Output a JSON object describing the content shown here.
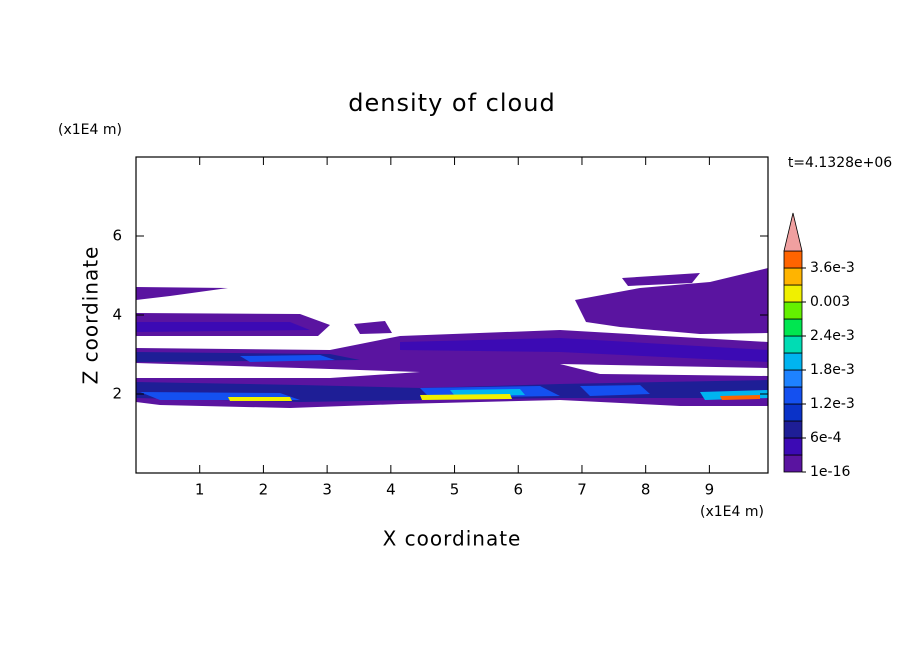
{
  "chart_data": {
    "type": "contour",
    "title": "density of cloud",
    "x_label": "X coordinate",
    "y_label": "Z coordinate",
    "x_unit": "(x1E4 m)",
    "y_unit": "(x1E4 m)",
    "time_label": "t=4.1328e+06",
    "xlim": [
      0,
      9.92
    ],
    "ylim": [
      0,
      8
    ],
    "xticks": [
      1,
      2,
      3,
      4,
      5,
      6,
      7,
      8,
      9
    ],
    "yticks": [
      2,
      4,
      6
    ],
    "colorbar": {
      "levels": [
        1e-16,
        0.0003,
        0.0006,
        0.0009,
        0.0012,
        0.0015,
        0.0018,
        0.0021,
        0.0024,
        0.0027,
        0.003,
        0.0033,
        0.0036,
        0.0039
      ],
      "colors": [
        "#5a14a0",
        "#3c0ab4",
        "#1e1e96",
        "#0a32c8",
        "#1450f0",
        "#1e82ff",
        "#00b4f0",
        "#00dcb4",
        "#00e650",
        "#64f000",
        "#f0f000",
        "#ffb400",
        "#ff6400",
        "#f0a0a0"
      ],
      "labels": [
        {
          "value": 1e-16,
          "label": "1e-16"
        },
        {
          "value": 0.0006,
          "label": "6e-4"
        },
        {
          "value": 0.0012,
          "label": "1.2e-3"
        },
        {
          "value": 0.0018,
          "label": "1.8e-3"
        },
        {
          "value": 0.0024,
          "label": "2.4e-3"
        },
        {
          "value": 0.003,
          "label": "0.003"
        },
        {
          "value": 0.0036,
          "label": "3.6e-3"
        }
      ]
    }
  }
}
